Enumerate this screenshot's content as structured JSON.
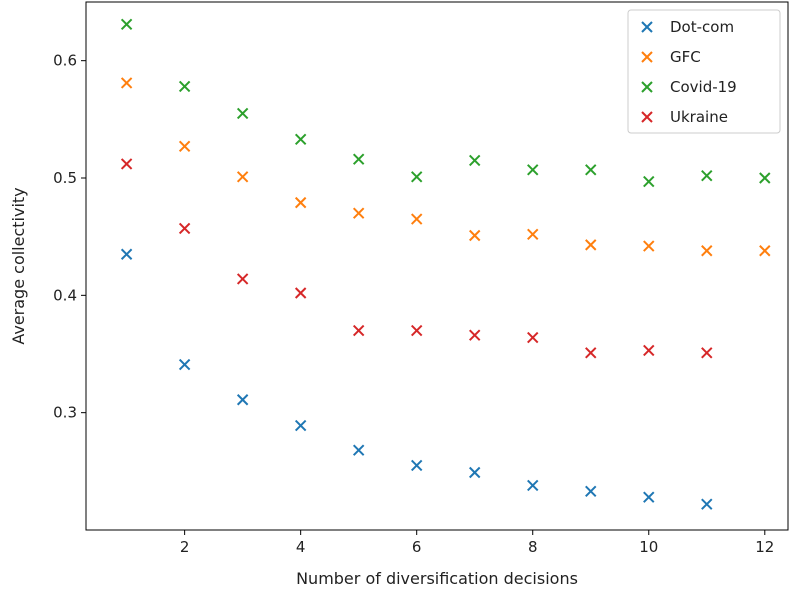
{
  "chart_data": {
    "type": "scatter",
    "title": "",
    "xlabel": "Number of diversification decisions",
    "ylabel": "Average collectivity",
    "xlim": [
      0.3,
      12.4
    ],
    "ylim": [
      0.2,
      0.65
    ],
    "xticks": [
      2,
      4,
      6,
      8,
      10,
      12
    ],
    "yticks": [
      0.3,
      0.4,
      0.5,
      0.6
    ],
    "grid": false,
    "legend_position": "top-right",
    "marker": "x",
    "series": [
      {
        "name": "Dot-com",
        "color": "#1f77b4",
        "x": [
          1,
          2,
          3,
          4,
          5,
          6,
          7,
          8,
          9,
          10,
          11
        ],
        "y": [
          0.435,
          0.341,
          0.311,
          0.289,
          0.268,
          0.255,
          0.249,
          0.238,
          0.233,
          0.228,
          0.222
        ]
      },
      {
        "name": "GFC",
        "color": "#ff7f0e",
        "x": [
          1,
          2,
          3,
          4,
          5,
          6,
          7,
          8,
          9,
          10,
          11,
          12
        ],
        "y": [
          0.581,
          0.527,
          0.501,
          0.479,
          0.47,
          0.465,
          0.451,
          0.452,
          0.443,
          0.442,
          0.438,
          0.438
        ]
      },
      {
        "name": "Covid-19",
        "color": "#2ca02c",
        "x": [
          1,
          2,
          3,
          4,
          5,
          6,
          7,
          8,
          9,
          10,
          11,
          12
        ],
        "y": [
          0.631,
          0.578,
          0.555,
          0.533,
          0.516,
          0.501,
          0.515,
          0.507,
          0.507,
          0.497,
          0.502,
          0.5
        ]
      },
      {
        "name": "Ukraine",
        "color": "#d62728",
        "x": [
          1,
          2,
          3,
          4,
          5,
          6,
          7,
          8,
          9,
          10,
          11
        ],
        "y": [
          0.512,
          0.457,
          0.414,
          0.402,
          0.37,
          0.37,
          0.366,
          0.364,
          0.351,
          0.353,
          0.351
        ]
      }
    ]
  }
}
